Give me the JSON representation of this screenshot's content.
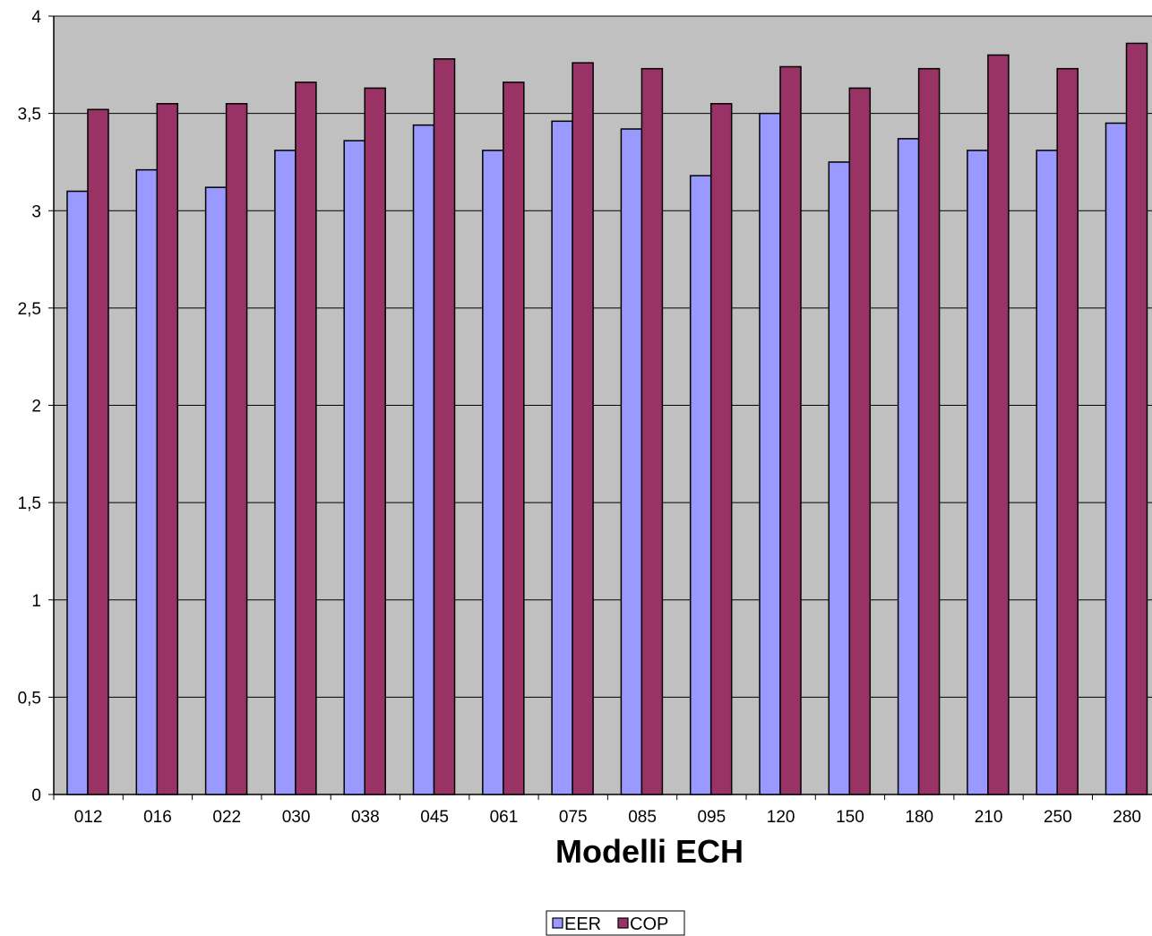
{
  "chart_data": {
    "type": "bar",
    "title": "",
    "xlabel": "Modelli ECH",
    "ylabel": "",
    "ylim": [
      0,
      4
    ],
    "yticks": [
      "0",
      "0,5",
      "1",
      "1,5",
      "2",
      "2,5",
      "3",
      "3,5",
      "4"
    ],
    "categories": [
      "012",
      "016",
      "022",
      "030",
      "038",
      "045",
      "061",
      "075",
      "085",
      "095",
      "120",
      "150",
      "180",
      "210",
      "250",
      "280"
    ],
    "series": [
      {
        "name": "EER",
        "color": "#9999ff",
        "values": [
          3.1,
          3.21,
          3.12,
          3.31,
          3.36,
          3.44,
          3.31,
          3.46,
          3.42,
          3.18,
          3.5,
          3.25,
          3.37,
          3.31,
          3.31,
          3.45
        ]
      },
      {
        "name": "COP",
        "color": "#993366",
        "values": [
          3.52,
          3.55,
          3.55,
          3.66,
          3.63,
          3.78,
          3.66,
          3.76,
          3.73,
          3.55,
          3.74,
          3.63,
          3.73,
          3.8,
          3.73,
          3.86
        ]
      }
    ],
    "grid": true,
    "plot_background": "#c0c0c0",
    "legend_position": "bottom"
  }
}
